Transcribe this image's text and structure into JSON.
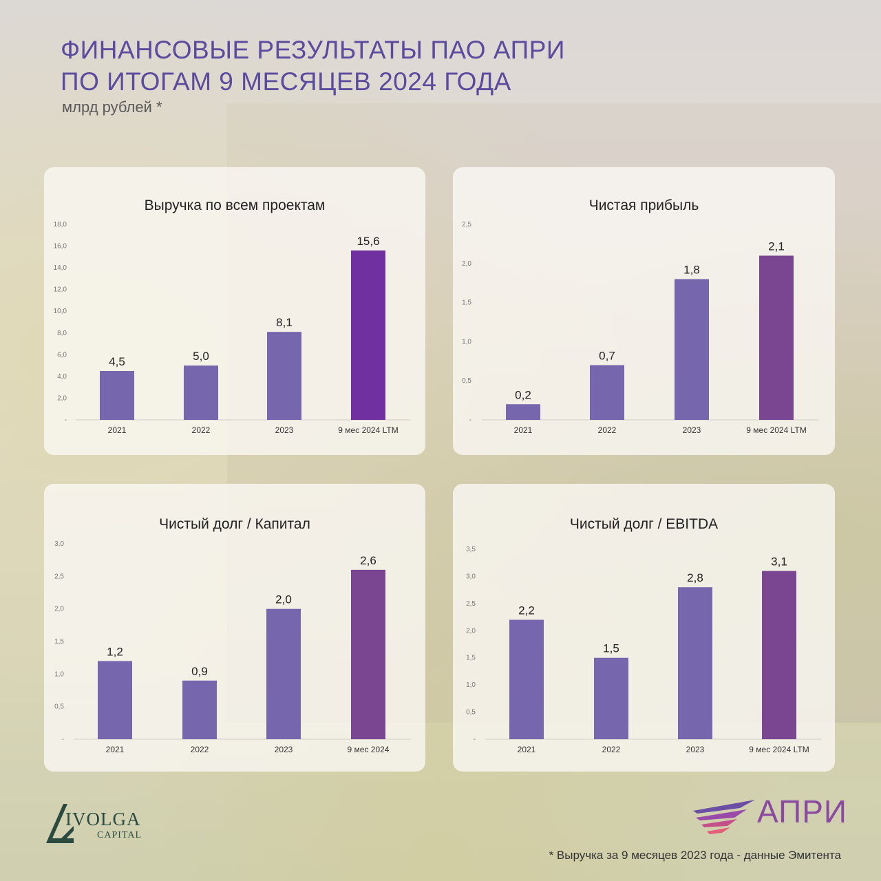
{
  "header": {
    "title_line1": "ФИНАНСОВЫЕ РЕЗУЛЬТАТЫ ПАО АПРИ",
    "title_line2": "ПО ИТОГАМ 9 МЕСЯЦЕВ 2024 ГОДА",
    "subtitle": "млрд рублей *"
  },
  "footnote": "* Выручка за 9 месяцев 2023 года - данные Эмитента",
  "logos": {
    "ivolga_name": "IVOLGA",
    "ivolga_sub": "CAPITAL",
    "apri_name": "АПРИ"
  },
  "colors": {
    "title": "#5b4b9e",
    "bar_regular": "#7666ad",
    "bar_highlight_revenue": "#7030a0",
    "bar_highlight": "#7a4692"
  },
  "chart_data": [
    {
      "type": "bar",
      "title": "Выручка по всем проектам",
      "categories": [
        "2021",
        "2022",
        "2023",
        "9 мес 2024 LTM"
      ],
      "values": [
        4.5,
        5.0,
        8.1,
        15.6
      ],
      "value_labels": [
        "4,5",
        "5,0",
        "8,1",
        "15,6"
      ],
      "ylim": [
        0,
        18
      ],
      "yticks": [
        "-",
        "2,0",
        "4,0",
        "6,0",
        "8,0",
        "10,0",
        "12,0",
        "14,0",
        "16,0",
        "18,0"
      ],
      "highlight_color": "#7030a0"
    },
    {
      "type": "bar",
      "title": "Чистая прибыль",
      "categories": [
        "2021",
        "2022",
        "2023",
        "9 мес 2024 LTM"
      ],
      "values": [
        0.2,
        0.7,
        1.8,
        2.1
      ],
      "value_labels": [
        "0,2",
        "0,7",
        "1,8",
        "2,1"
      ],
      "ylim": [
        0,
        2.5
      ],
      "yticks": [
        "-",
        "0,5",
        "1,0",
        "1,5",
        "2,0",
        "2,5"
      ],
      "highlight_color": "#7a4692"
    },
    {
      "type": "bar",
      "title": "Чистый долг / Капитал",
      "categories": [
        "2021",
        "2022",
        "2023",
        "9 мес 2024"
      ],
      "values": [
        1.2,
        0.9,
        2.0,
        2.6
      ],
      "value_labels": [
        "1,2",
        "0,9",
        "2,0",
        "2,6"
      ],
      "ylim": [
        0,
        3.0
      ],
      "yticks": [
        "-",
        "0,5",
        "1,0",
        "1,5",
        "2,0",
        "2,5",
        "3,0"
      ],
      "highlight_color": "#7a4692"
    },
    {
      "type": "bar",
      "title": "Чистый долг / EBITDA",
      "categories": [
        "2021",
        "2022",
        "2023",
        "9 мес 2024 LTM"
      ],
      "values": [
        2.2,
        1.5,
        2.8,
        3.1
      ],
      "value_labels": [
        "2,2",
        "1,5",
        "2,8",
        "3,1"
      ],
      "ylim": [
        0,
        3.5
      ],
      "yticks": [
        "-",
        "0,5",
        "1,0",
        "1,5",
        "2,0",
        "2,5",
        "3,0",
        "3,5"
      ],
      "highlight_color": "#7a4692"
    }
  ]
}
